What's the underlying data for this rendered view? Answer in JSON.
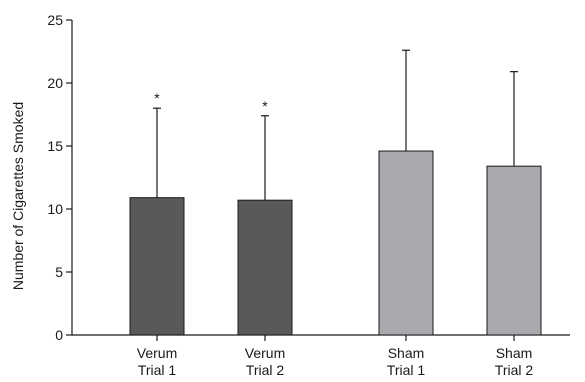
{
  "chart_data": {
    "type": "bar",
    "title": "",
    "xlabel": "",
    "ylabel": "Number of Cigarettes Smoked",
    "ylim": [
      0,
      25
    ],
    "yticks": [
      0,
      5,
      10,
      15,
      20,
      25
    ],
    "grid": false,
    "categories": [
      {
        "line1": "Verum",
        "line2": "Trial 1"
      },
      {
        "line1": "Verum",
        "line2": "Trial 2"
      },
      {
        "line1": "Sham",
        "line2": "Trial 1"
      },
      {
        "line1": "Sham",
        "line2": "Trial 2"
      }
    ],
    "values": [
      10.9,
      10.7,
      14.6,
      13.4
    ],
    "error_upper": [
      7.1,
      6.7,
      8.0,
      7.5
    ],
    "annotations": [
      "*",
      "*",
      "",
      ""
    ],
    "colors": [
      "#58595b",
      "#58595b",
      "#a7a9ac",
      "#a7a9ac"
    ]
  }
}
